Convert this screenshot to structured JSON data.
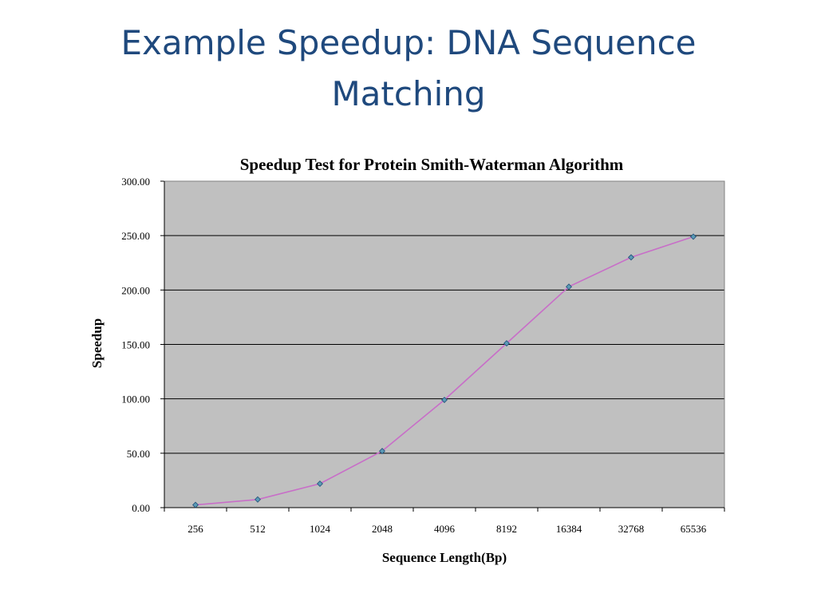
{
  "slide": {
    "title": "Example Speedup: DNA Sequence Matching"
  },
  "chart_data": {
    "type": "line",
    "title": "Speedup Test for Protein Smith-Waterman Algorithm",
    "xlabel": "Sequence Length(Bp)",
    "ylabel": "Speedup",
    "categories": [
      "256",
      "512",
      "1024",
      "2048",
      "4096",
      "8192",
      "16384",
      "32768",
      "65536"
    ],
    "series": [
      {
        "values": [
          2.5,
          7.5,
          22,
          52,
          99,
          151,
          203,
          230,
          249
        ]
      }
    ],
    "ylim": [
      0,
      300
    ],
    "yticks": [
      "0.00",
      "50.00",
      "100.00",
      "150.00",
      "200.00",
      "250.00",
      "300.00"
    ],
    "grid": true,
    "legend": "none",
    "colors": {
      "plot_background": "#C0C0C0",
      "line": "#C86EC8",
      "marker_fill": "#5B9BB5",
      "marker_stroke": "#1F4E79",
      "gridline": "#000000"
    }
  }
}
